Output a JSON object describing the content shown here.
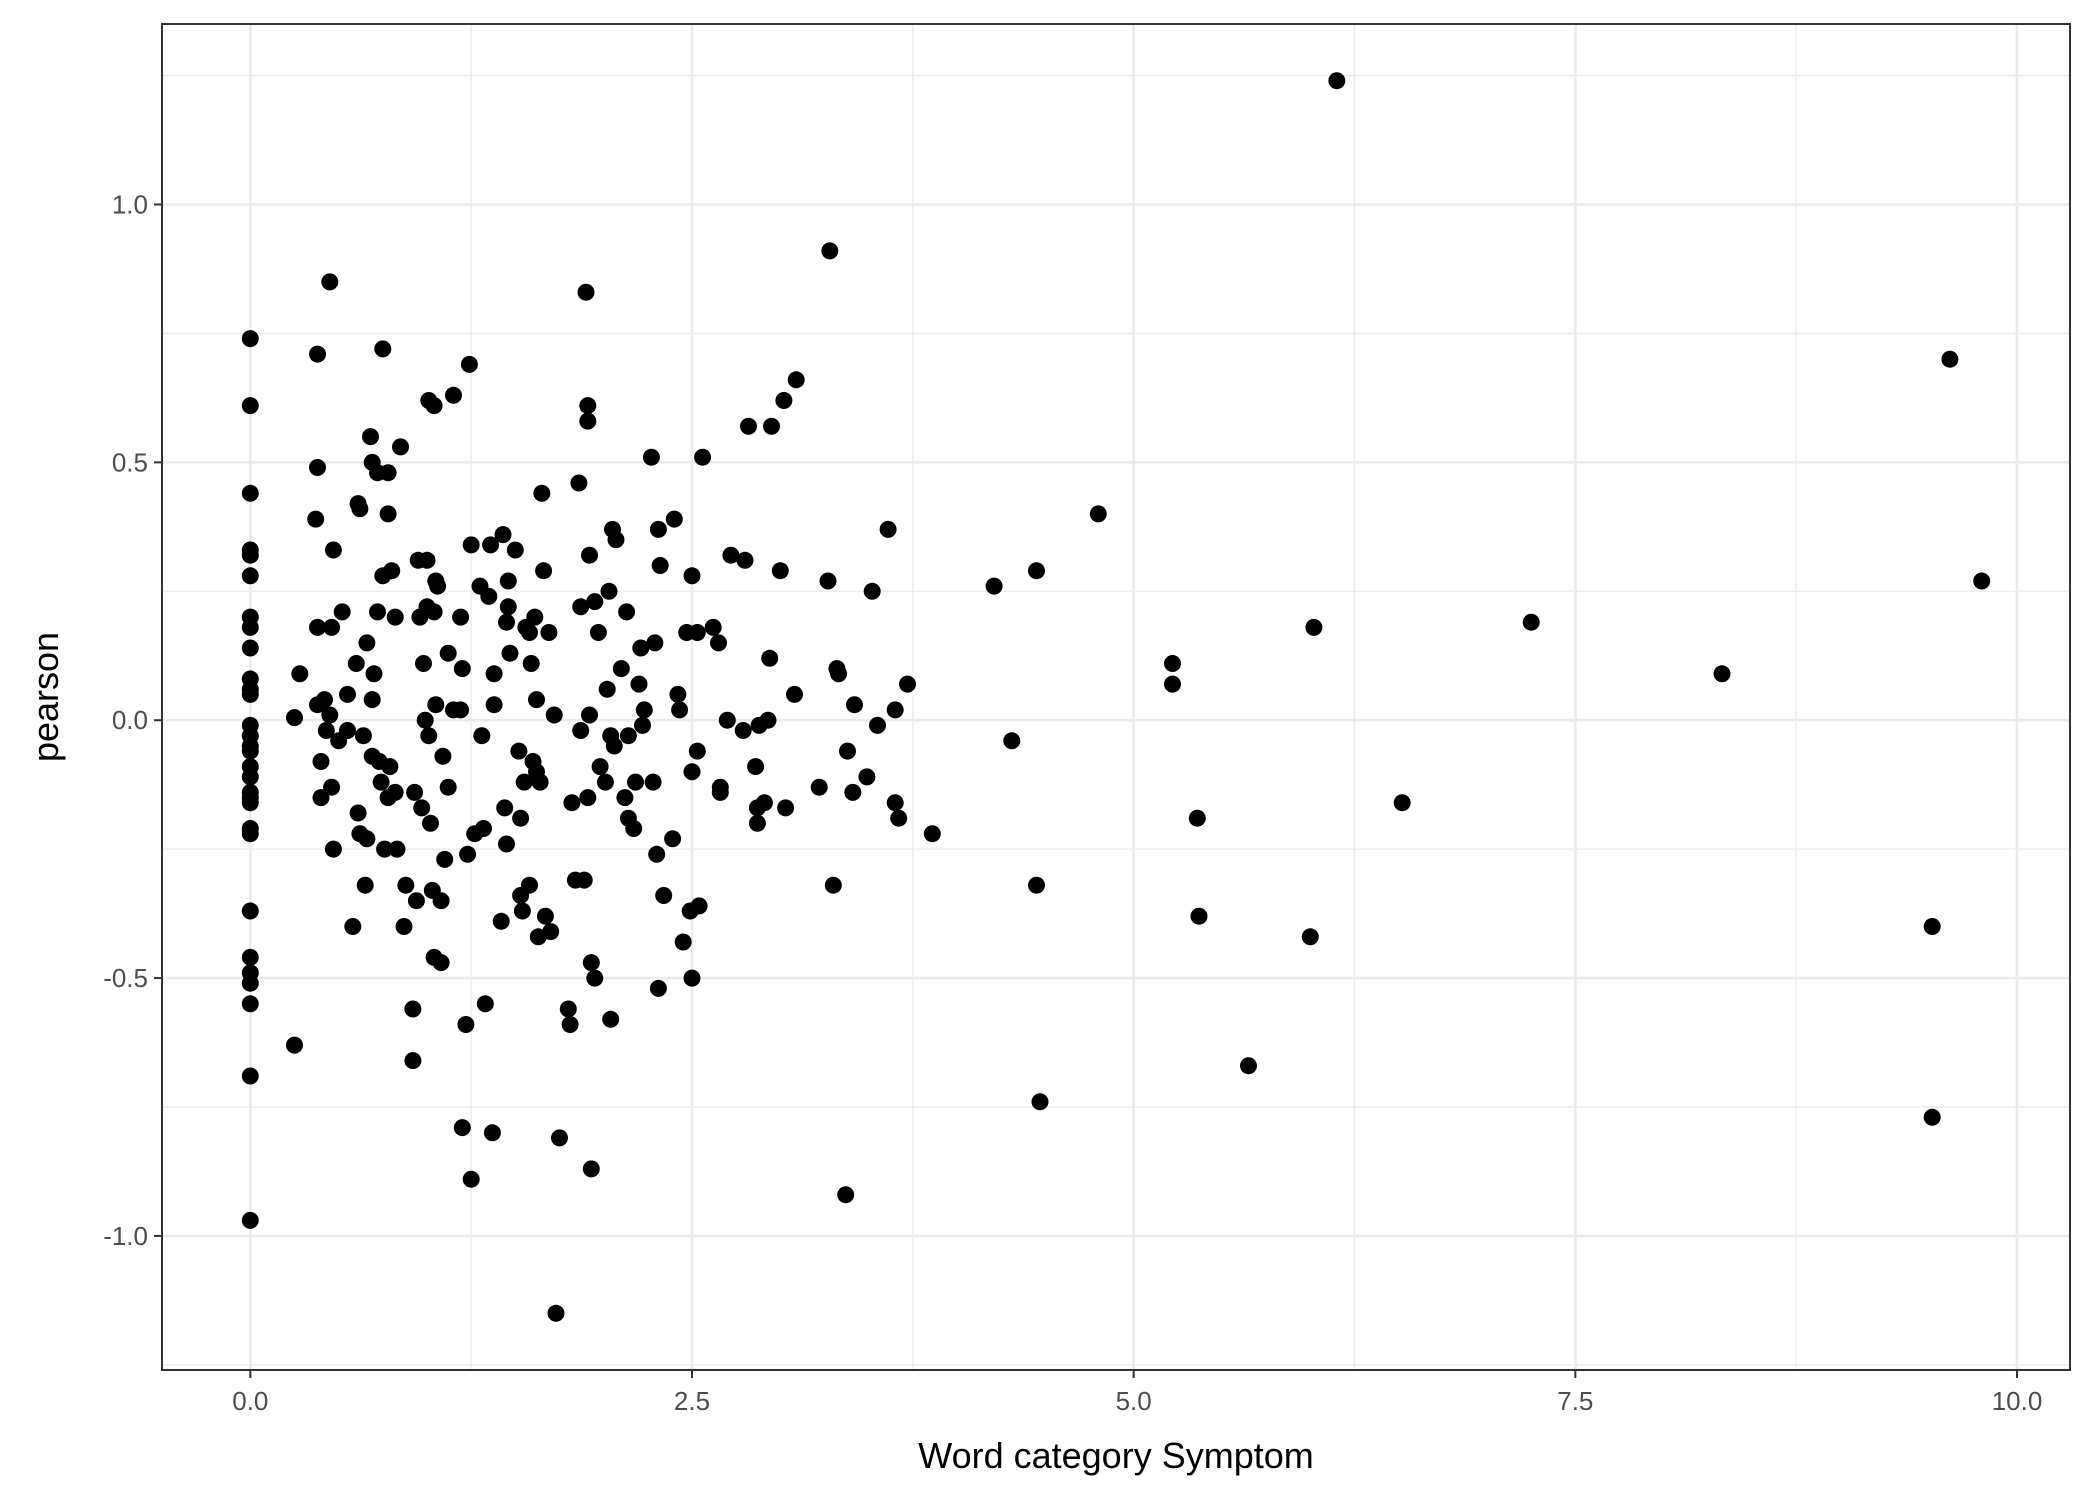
{
  "chart_data": {
    "type": "scatter",
    "xlabel": "Word category Symptom",
    "ylabel": "pearson",
    "xlim": [
      -0.5,
      10.3
    ],
    "ylim": [
      -1.26,
      1.35
    ],
    "x_ticks": [
      0,
      2.5,
      5,
      7.5,
      10
    ],
    "x_tick_labels": [
      "0.0",
      "2.5",
      "5.0",
      "7.5",
      "10.0"
    ],
    "y_ticks": [
      -1,
      -0.5,
      0,
      0.5,
      1
    ],
    "y_tick_labels": [
      "-1.0",
      "-0.5",
      "0.0",
      "0.5",
      "1.0"
    ],
    "grid": true,
    "legend": "none",
    "colors": {
      "point": "#000000",
      "grid": "#ebebeb",
      "panel_border": "#333333",
      "background": "#ffffff"
    },
    "points": [
      {
        "x": 0,
        "y": 0.74
      },
      {
        "x": 0,
        "y": 0.61
      },
      {
        "x": 0,
        "y": 0.44
      },
      {
        "x": 0,
        "y": 0.33
      },
      {
        "x": 0,
        "y": 0.32
      },
      {
        "x": 0,
        "y": 0.28
      },
      {
        "x": 0,
        "y": 0.2
      },
      {
        "x": 0,
        "y": 0.18
      },
      {
        "x": 0,
        "y": 0.14
      },
      {
        "x": 0,
        "y": 0.08
      },
      {
        "x": 0,
        "y": 0.06
      },
      {
        "x": 0,
        "y": 0.05
      },
      {
        "x": 0,
        "y": -0.01
      },
      {
        "x": 0,
        "y": -0.03
      },
      {
        "x": 0,
        "y": -0.05
      },
      {
        "x": 0,
        "y": -0.06
      },
      {
        "x": 0,
        "y": -0.09
      },
      {
        "x": 0,
        "y": -0.11
      },
      {
        "x": 0,
        "y": -0.14
      },
      {
        "x": 0,
        "y": -0.15
      },
      {
        "x": 0,
        "y": -0.16
      },
      {
        "x": 0,
        "y": -0.21
      },
      {
        "x": 0,
        "y": -0.22
      },
      {
        "x": 0,
        "y": -0.37
      },
      {
        "x": 0,
        "y": -0.46
      },
      {
        "x": 0,
        "y": -0.49
      },
      {
        "x": 0,
        "y": -0.51
      },
      {
        "x": 0,
        "y": -0.55
      },
      {
        "x": 0,
        "y": -0.69
      },
      {
        "x": 0,
        "y": -0.97
      },
      {
        "x": 0.25,
        "y": 0.005
      },
      {
        "x": 0.25,
        "y": -0.63
      },
      {
        "x": 0.28,
        "y": 0.09
      },
      {
        "x": 0.38,
        "y": 0.71
      },
      {
        "x": 0.38,
        "y": 0.49
      },
      {
        "x": 0.37,
        "y": 0.39
      },
      {
        "x": 0.38,
        "y": 0.18
      },
      {
        "x": 0.38,
        "y": 0.03
      },
      {
        "x": 0.4,
        "y": -0.08
      },
      {
        "x": 0.4,
        "y": -0.15
      },
      {
        "x": 0.42,
        "y": 0.04
      },
      {
        "x": 0.43,
        "y": -0.02
      },
      {
        "x": 0.45,
        "y": 0.01
      },
      {
        "x": 0.45,
        "y": 0.85
      },
      {
        "x": 0.46,
        "y": 0.18
      },
      {
        "x": 0.47,
        "y": 0.33
      },
      {
        "x": 0.46,
        "y": -0.13
      },
      {
        "x": 0.47,
        "y": -0.25
      },
      {
        "x": 0.5,
        "y": -0.04
      },
      {
        "x": 0.52,
        "y": 0.21
      },
      {
        "x": 0.55,
        "y": 0.05
      },
      {
        "x": 0.55,
        "y": -0.02
      },
      {
        "x": 0.58,
        "y": -0.4
      },
      {
        "x": 0.6,
        "y": 0.11
      },
      {
        "x": 0.61,
        "y": 0.42
      },
      {
        "x": 0.62,
        "y": 0.41
      },
      {
        "x": 0.61,
        "y": -0.18
      },
      {
        "x": 0.62,
        "y": -0.22
      },
      {
        "x": 0.64,
        "y": -0.03
      },
      {
        "x": 0.65,
        "y": -0.32
      },
      {
        "x": 0.66,
        "y": -0.23
      },
      {
        "x": 0.66,
        "y": 0.15
      },
      {
        "x": 0.68,
        "y": 0.55
      },
      {
        "x": 0.69,
        "y": 0.5
      },
      {
        "x": 0.69,
        "y": 0.04
      },
      {
        "x": 0.69,
        "y": -0.07
      },
      {
        "x": 0.7,
        "y": 0.09
      },
      {
        "x": 0.72,
        "y": 0.48
      },
      {
        "x": 0.72,
        "y": 0.21
      },
      {
        "x": 0.73,
        "y": -0.08
      },
      {
        "x": 0.74,
        "y": -0.12
      },
      {
        "x": 0.75,
        "y": 0.72
      },
      {
        "x": 0.75,
        "y": 0.28
      },
      {
        "x": 0.76,
        "y": -0.25
      },
      {
        "x": 0.78,
        "y": 0.48
      },
      {
        "x": 0.78,
        "y": 0.4
      },
      {
        "x": 0.78,
        "y": -0.15
      },
      {
        "x": 0.79,
        "y": -0.09
      },
      {
        "x": 0.8,
        "y": 0.29
      },
      {
        "x": 0.82,
        "y": 0.2
      },
      {
        "x": 0.82,
        "y": -0.14
      },
      {
        "x": 0.83,
        "y": -0.25
      },
      {
        "x": 0.85,
        "y": 0.53
      },
      {
        "x": 0.87,
        "y": -0.4
      },
      {
        "x": 0.88,
        "y": -0.32
      },
      {
        "x": 0.92,
        "y": -0.56
      },
      {
        "x": 0.92,
        "y": -0.66
      },
      {
        "x": 0.93,
        "y": -0.14
      },
      {
        "x": 0.94,
        "y": -0.35
      },
      {
        "x": 0.95,
        "y": 0.31
      },
      {
        "x": 0.96,
        "y": 0.2
      },
      {
        "x": 0.97,
        "y": -0.17
      },
      {
        "x": 0.98,
        "y": 0.11
      },
      {
        "x": 0.99,
        "y": 0.0
      },
      {
        "x": 1.0,
        "y": 0.31
      },
      {
        "x": 1.0,
        "y": 0.22
      },
      {
        "x": 1.01,
        "y": 0.62
      },
      {
        "x": 1.01,
        "y": -0.03
      },
      {
        "x": 1.02,
        "y": -0.2
      },
      {
        "x": 1.03,
        "y": -0.33
      },
      {
        "x": 1.04,
        "y": 0.61
      },
      {
        "x": 1.04,
        "y": 0.21
      },
      {
        "x": 1.04,
        "y": -0.46
      },
      {
        "x": 1.05,
        "y": 0.27
      },
      {
        "x": 1.05,
        "y": 0.03
      },
      {
        "x": 1.06,
        "y": 0.26
      },
      {
        "x": 1.08,
        "y": -0.47
      },
      {
        "x": 1.08,
        "y": -0.35
      },
      {
        "x": 1.09,
        "y": -0.07
      },
      {
        "x": 1.1,
        "y": -0.27
      },
      {
        "x": 1.12,
        "y": 0.13
      },
      {
        "x": 1.12,
        "y": -0.13
      },
      {
        "x": 1.15,
        "y": 0.63
      },
      {
        "x": 1.15,
        "y": 0.02
      },
      {
        "x": 1.19,
        "y": 0.02
      },
      {
        "x": 1.19,
        "y": 0.2
      },
      {
        "x": 1.2,
        "y": 0.1
      },
      {
        "x": 1.2,
        "y": -0.79
      },
      {
        "x": 1.22,
        "y": -0.59
      },
      {
        "x": 1.23,
        "y": -0.26
      },
      {
        "x": 1.24,
        "y": 0.69
      },
      {
        "x": 1.25,
        "y": -0.89
      },
      {
        "x": 1.25,
        "y": 0.34
      },
      {
        "x": 1.27,
        "y": -0.22
      },
      {
        "x": 1.3,
        "y": 0.26
      },
      {
        "x": 1.31,
        "y": -0.03
      },
      {
        "x": 1.32,
        "y": -0.21
      },
      {
        "x": 1.33,
        "y": -0.55
      },
      {
        "x": 1.35,
        "y": 0.24
      },
      {
        "x": 1.36,
        "y": 0.34
      },
      {
        "x": 1.37,
        "y": -0.8
      },
      {
        "x": 1.38,
        "y": 0.09
      },
      {
        "x": 1.38,
        "y": 0.03
      },
      {
        "x": 1.42,
        "y": -0.39
      },
      {
        "x": 1.43,
        "y": 0.36
      },
      {
        "x": 1.44,
        "y": -0.17
      },
      {
        "x": 1.45,
        "y": 0.19
      },
      {
        "x": 1.45,
        "y": -0.24
      },
      {
        "x": 1.46,
        "y": 0.27
      },
      {
        "x": 1.46,
        "y": 0.22
      },
      {
        "x": 1.47,
        "y": 0.13
      },
      {
        "x": 1.5,
        "y": 0.33
      },
      {
        "x": 1.52,
        "y": -0.06
      },
      {
        "x": 1.53,
        "y": -0.19
      },
      {
        "x": 1.53,
        "y": -0.34
      },
      {
        "x": 1.54,
        "y": -0.37
      },
      {
        "x": 1.55,
        "y": -0.12
      },
      {
        "x": 1.56,
        "y": 0.18
      },
      {
        "x": 1.58,
        "y": 0.17
      },
      {
        "x": 1.58,
        "y": -0.32
      },
      {
        "x": 1.59,
        "y": 0.11
      },
      {
        "x": 1.6,
        "y": -0.08
      },
      {
        "x": 1.61,
        "y": 0.2
      },
      {
        "x": 1.62,
        "y": 0.04
      },
      {
        "x": 1.62,
        "y": -0.1
      },
      {
        "x": 1.63,
        "y": -0.42
      },
      {
        "x": 1.64,
        "y": -0.12
      },
      {
        "x": 1.65,
        "y": 0.44
      },
      {
        "x": 1.66,
        "y": 0.29
      },
      {
        "x": 1.67,
        "y": -0.38
      },
      {
        "x": 1.69,
        "y": 0.17
      },
      {
        "x": 1.7,
        "y": -0.41
      },
      {
        "x": 1.72,
        "y": 0.01
      },
      {
        "x": 1.73,
        "y": -1.15
      },
      {
        "x": 1.75,
        "y": -0.81
      },
      {
        "x": 1.8,
        "y": -0.56
      },
      {
        "x": 1.81,
        "y": -0.59
      },
      {
        "x": 1.82,
        "y": -0.16
      },
      {
        "x": 1.84,
        "y": -0.31
      },
      {
        "x": 1.86,
        "y": 0.46
      },
      {
        "x": 1.87,
        "y": 0.22
      },
      {
        "x": 1.87,
        "y": -0.02
      },
      {
        "x": 1.89,
        "y": -0.31
      },
      {
        "x": 1.9,
        "y": 0.83
      },
      {
        "x": 1.91,
        "y": 0.61
      },
      {
        "x": 1.91,
        "y": 0.58
      },
      {
        "x": 1.91,
        "y": -0.15
      },
      {
        "x": 1.92,
        "y": 0.01
      },
      {
        "x": 1.92,
        "y": 0.32
      },
      {
        "x": 1.93,
        "y": -0.47
      },
      {
        "x": 1.93,
        "y": -0.87
      },
      {
        "x": 1.95,
        "y": 0.23
      },
      {
        "x": 1.95,
        "y": -0.5
      },
      {
        "x": 1.97,
        "y": 0.17
      },
      {
        "x": 1.98,
        "y": -0.09
      },
      {
        "x": 2.01,
        "y": -0.12
      },
      {
        "x": 2.02,
        "y": 0.06
      },
      {
        "x": 2.03,
        "y": 0.25
      },
      {
        "x": 2.04,
        "y": -0.58
      },
      {
        "x": 2.04,
        "y": -0.03
      },
      {
        "x": 2.05,
        "y": 0.37
      },
      {
        "x": 2.06,
        "y": -0.05
      },
      {
        "x": 2.07,
        "y": 0.35
      },
      {
        "x": 2.1,
        "y": 0.1
      },
      {
        "x": 2.12,
        "y": -0.15
      },
      {
        "x": 2.13,
        "y": 0.21
      },
      {
        "x": 2.14,
        "y": -0.03
      },
      {
        "x": 2.14,
        "y": -0.19
      },
      {
        "x": 2.17,
        "y": -0.21
      },
      {
        "x": 2.18,
        "y": -0.12
      },
      {
        "x": 2.2,
        "y": 0.07
      },
      {
        "x": 2.21,
        "y": 0.14
      },
      {
        "x": 2.22,
        "y": -0.01
      },
      {
        "x": 2.23,
        "y": 0.02
      },
      {
        "x": 2.27,
        "y": 0.51
      },
      {
        "x": 2.28,
        "y": -0.12
      },
      {
        "x": 2.29,
        "y": 0.15
      },
      {
        "x": 2.3,
        "y": -0.26
      },
      {
        "x": 2.31,
        "y": -0.52
      },
      {
        "x": 2.31,
        "y": 0.37
      },
      {
        "x": 2.32,
        "y": 0.3
      },
      {
        "x": 2.34,
        "y": -0.34
      },
      {
        "x": 2.39,
        "y": -0.23
      },
      {
        "x": 2.4,
        "y": 0.39
      },
      {
        "x": 2.42,
        "y": 0.05
      },
      {
        "x": 2.43,
        "y": 0.02
      },
      {
        "x": 2.45,
        "y": -0.43
      },
      {
        "x": 2.47,
        "y": 0.17
      },
      {
        "x": 2.49,
        "y": -0.37
      },
      {
        "x": 2.5,
        "y": -0.1
      },
      {
        "x": 2.5,
        "y": -0.5
      },
      {
        "x": 2.5,
        "y": 0.28
      },
      {
        "x": 2.53,
        "y": 0.17
      },
      {
        "x": 2.53,
        "y": -0.06
      },
      {
        "x": 2.54,
        "y": -0.36
      },
      {
        "x": 2.56,
        "y": 0.51
      },
      {
        "x": 2.62,
        "y": 0.18
      },
      {
        "x": 2.65,
        "y": 0.15
      },
      {
        "x": 2.66,
        "y": -0.13
      },
      {
        "x": 2.66,
        "y": -0.14
      },
      {
        "x": 2.7,
        "y": 0.0
      },
      {
        "x": 2.72,
        "y": 0.32
      },
      {
        "x": 2.79,
        "y": -0.02
      },
      {
        "x": 2.8,
        "y": 0.31
      },
      {
        "x": 2.82,
        "y": 0.57
      },
      {
        "x": 2.86,
        "y": -0.09
      },
      {
        "x": 2.87,
        "y": -0.2
      },
      {
        "x": 2.87,
        "y": -0.17
      },
      {
        "x": 2.88,
        "y": -0.01
      },
      {
        "x": 2.91,
        "y": -0.16
      },
      {
        "x": 2.93,
        "y": 0.0
      },
      {
        "x": 2.94,
        "y": 0.12
      },
      {
        "x": 2.95,
        "y": 0.57
      },
      {
        "x": 3.0,
        "y": 0.29
      },
      {
        "x": 3.02,
        "y": 0.62
      },
      {
        "x": 3.03,
        "y": -0.17
      },
      {
        "x": 3.08,
        "y": 0.05
      },
      {
        "x": 3.09,
        "y": 0.66
      },
      {
        "x": 3.22,
        "y": -0.13
      },
      {
        "x": 3.27,
        "y": 0.27
      },
      {
        "x": 3.28,
        "y": 0.91
      },
      {
        "x": 3.3,
        "y": -0.32
      },
      {
        "x": 3.32,
        "y": 0.1
      },
      {
        "x": 3.33,
        "y": 0.09
      },
      {
        "x": 3.37,
        "y": -0.92
      },
      {
        "x": 3.38,
        "y": -0.06
      },
      {
        "x": 3.41,
        "y": -0.14
      },
      {
        "x": 3.42,
        "y": 0.03
      },
      {
        "x": 3.49,
        "y": -0.11
      },
      {
        "x": 3.52,
        "y": 0.25
      },
      {
        "x": 3.55,
        "y": -0.01
      },
      {
        "x": 3.61,
        "y": 0.37
      },
      {
        "x": 3.65,
        "y": 0.02
      },
      {
        "x": 3.65,
        "y": -0.16
      },
      {
        "x": 3.67,
        "y": -0.19
      },
      {
        "x": 3.72,
        "y": 0.07
      },
      {
        "x": 3.86,
        "y": -0.22
      },
      {
        "x": 4.21,
        "y": 0.26
      },
      {
        "x": 4.31,
        "y": -0.04
      },
      {
        "x": 4.45,
        "y": 0.29
      },
      {
        "x": 4.45,
        "y": -0.32
      },
      {
        "x": 4.47,
        "y": -0.74
      },
      {
        "x": 4.8,
        "y": 0.4
      },
      {
        "x": 5.22,
        "y": 0.11
      },
      {
        "x": 5.22,
        "y": 0.07
      },
      {
        "x": 5.36,
        "y": -0.19
      },
      {
        "x": 5.37,
        "y": -0.38
      },
      {
        "x": 5.65,
        "y": -0.67
      },
      {
        "x": 6.0,
        "y": -0.42
      },
      {
        "x": 6.02,
        "y": 0.18
      },
      {
        "x": 6.15,
        "y": 1.24
      },
      {
        "x": 6.52,
        "y": -0.16
      },
      {
        "x": 7.25,
        "y": 0.19
      },
      {
        "x": 8.33,
        "y": 0.09
      },
      {
        "x": 9.52,
        "y": -0.4
      },
      {
        "x": 9.52,
        "y": -0.77
      },
      {
        "x": 9.62,
        "y": 0.7
      },
      {
        "x": 9.8,
        "y": 0.27
      }
    ]
  }
}
